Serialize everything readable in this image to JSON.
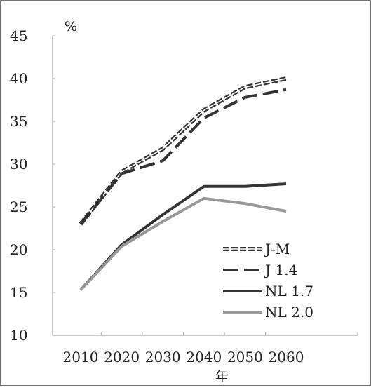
{
  "chart_data": {
    "type": "line",
    "title": "",
    "xlabel": "年",
    "ylabel": "",
    "unit_label": "%",
    "x": [
      2010,
      2020,
      2030,
      2040,
      2050,
      2060
    ],
    "x_tick_labels": [
      "2010",
      "2020",
      "2030",
      "2040",
      "2050",
      "2060"
    ],
    "y_tick_labels": [
      "10",
      "15",
      "20",
      "25",
      "30",
      "35",
      "40",
      "45"
    ],
    "ylim": [
      10,
      45
    ],
    "grid": false,
    "legend_position": "bottom-right",
    "series": [
      {
        "name": "J-M",
        "values": [
          23.0,
          29.1,
          31.8,
          36.3,
          39.0,
          40.0
        ],
        "color": "#333333",
        "style": "short-dash-double"
      },
      {
        "name": "J 1.4",
        "values": [
          23.0,
          28.9,
          30.4,
          35.4,
          37.8,
          38.7
        ],
        "color": "#333333",
        "style": "long-dash"
      },
      {
        "name": "NL 1.7",
        "values": [
          15.3,
          20.6,
          24.1,
          27.4,
          27.4,
          27.7
        ],
        "color": "#333333",
        "style": "solid"
      },
      {
        "name": "NL 2.0",
        "values": [
          15.3,
          20.4,
          23.3,
          26.0,
          25.4,
          24.5
        ],
        "color": "#999999",
        "style": "solid"
      }
    ]
  }
}
